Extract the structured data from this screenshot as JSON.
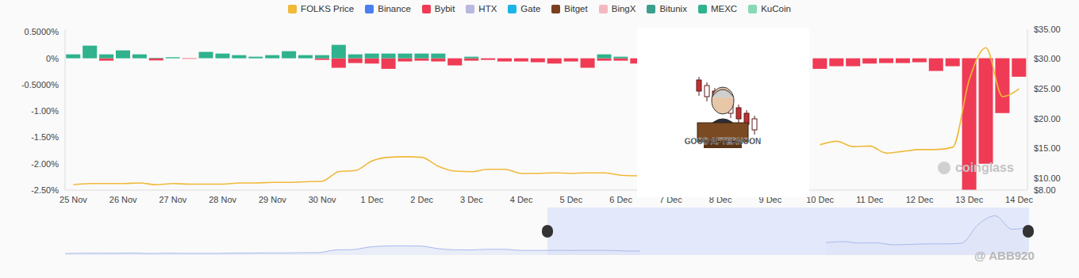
{
  "chart_data": {
    "type": "bar",
    "stacked": true,
    "grid": false,
    "legend": "top",
    "annotations": [
      "GOOD AFTERNOON",
      "coinglass",
      "@ ABB920"
    ],
    "categories": [
      "25 Nov",
      null,
      null,
      "26 Nov",
      null,
      null,
      "27 Nov",
      null,
      null,
      "28 Nov",
      null,
      null,
      "29 Nov",
      null,
      null,
      "30 Nov",
      null,
      null,
      "1 Dec",
      null,
      null,
      "2 Dec",
      null,
      null,
      "3 Dec",
      null,
      null,
      "4 Dec",
      null,
      null,
      "5 Dec",
      null,
      null,
      "6 Dec",
      null,
      null,
      "7 Dec",
      null,
      null,
      "8 Dec",
      null,
      null,
      "9 Dec",
      null,
      null,
      "10 Dec",
      null,
      null,
      "11 Dec",
      null,
      null,
      "12 Dec",
      null,
      null,
      "13 Dec",
      null,
      null,
      "14 Dec"
    ],
    "ylim": [
      -2.5,
      0.55
    ],
    "yticks": [
      {
        "value": 0.5,
        "label": "0.5000%"
      },
      {
        "value": 0,
        "label": "0%"
      },
      {
        "value": -0.5,
        "label": "-0.5000%"
      },
      {
        "value": -1,
        "label": "-1.00%"
      },
      {
        "value": -1.5,
        "label": "-1.50%"
      },
      {
        "value": -2,
        "label": "-2.00%"
      },
      {
        "value": -2.5,
        "label": "-2.50%"
      }
    ],
    "y2lim": [
      8,
      35
    ],
    "y2ticks": [
      {
        "value": 35,
        "label": "$35.00"
      },
      {
        "value": 30,
        "label": "$30.00"
      },
      {
        "value": 25,
        "label": "$25.00"
      },
      {
        "value": 20,
        "label": "$20.00"
      },
      {
        "value": 15,
        "label": "$15.00"
      },
      {
        "value": 10,
        "label": "$10.00"
      },
      {
        "value": 8,
        "label": "$8.00"
      }
    ],
    "series": [
      {
        "name": "FOLKS Price",
        "type": "line",
        "axis": "y2",
        "color": "#f0b93a",
        "values": [
          8.9,
          9.1,
          9.1,
          9.1,
          9.2,
          8.9,
          9.1,
          9.0,
          9.0,
          9.0,
          9.2,
          9.2,
          9.3,
          9.3,
          9.4,
          9.5,
          11.1,
          11.3,
          12.9,
          13.5,
          13.6,
          13.5,
          12.0,
          11.2,
          11.1,
          11.5,
          11.5,
          10.8,
          10.8,
          10.9,
          10.8,
          10.9,
          10.9,
          10.5,
          10.4,
          null,
          null,
          null,
          null,
          null,
          null,
          null,
          null,
          null,
          null,
          15.6,
          16.2,
          15.3,
          15.4,
          14.2,
          14.5,
          14.8,
          14.8,
          15.2,
          26.6,
          31.9,
          23.7,
          25.0
        ]
      },
      {
        "name": "Binance",
        "color": "#4a7ff0",
        "values": [
          null,
          null,
          null,
          null,
          null,
          null,
          null,
          null,
          null,
          null,
          null,
          null,
          null,
          null,
          null,
          null,
          null,
          null,
          null,
          null,
          null,
          null,
          null,
          null,
          null,
          null,
          null,
          null,
          null,
          null,
          null,
          null,
          null,
          null,
          null,
          null,
          null,
          null,
          null,
          null,
          null,
          null,
          null,
          null,
          null,
          null,
          null,
          null,
          null,
          null,
          null,
          null,
          null,
          null,
          null,
          null,
          null,
          null
        ]
      },
      {
        "name": "Bybit",
        "color": "#ef3b55",
        "values": [
          0,
          0,
          -0.045,
          0,
          0,
          -0.04,
          0,
          -0.01,
          0,
          0,
          0,
          0,
          0,
          0,
          0,
          -0.03,
          -0.18,
          -0.09,
          -0.1,
          -0.2,
          -0.06,
          -0.045,
          -0.06,
          -0.135,
          -0.045,
          -0.03,
          -0.06,
          -0.06,
          -0.075,
          -0.1,
          -0.06,
          -0.18,
          -0.045,
          -0.045,
          -0.1,
          null,
          null,
          null,
          null,
          null,
          null,
          null,
          null,
          null,
          null,
          -0.2,
          -0.15,
          -0.15,
          -0.1,
          -0.09,
          -0.09,
          -0.075,
          -0.24,
          -0.15,
          -2.5,
          -2.0,
          -1.04,
          -0.35
        ]
      },
      {
        "name": "HTX",
        "color": "#b8b8e0",
        "values": [
          null,
          null,
          null,
          null,
          null,
          null,
          null,
          null,
          null,
          null,
          null,
          null,
          null,
          null,
          null,
          null,
          null,
          null,
          null,
          null,
          null,
          null,
          null,
          null,
          null,
          null,
          null,
          null,
          null,
          null,
          null,
          null,
          null,
          null,
          null,
          null,
          null,
          null,
          null,
          null,
          null,
          null,
          null,
          null,
          null,
          null,
          null,
          null,
          null,
          null,
          null,
          null,
          null,
          null,
          null,
          null,
          null,
          null
        ]
      },
      {
        "name": "Gate",
        "color": "#1cb4e6",
        "values": [
          null,
          null,
          null,
          null,
          null,
          null,
          null,
          null,
          null,
          null,
          null,
          null,
          null,
          null,
          null,
          null,
          null,
          null,
          null,
          null,
          null,
          null,
          null,
          null,
          null,
          null,
          null,
          null,
          null,
          null,
          null,
          null,
          null,
          null,
          null,
          null,
          null,
          null,
          null,
          null,
          null,
          null,
          null,
          null,
          null,
          null,
          null,
          null,
          null,
          null,
          null,
          null,
          null,
          null,
          null,
          null,
          null,
          null
        ]
      },
      {
        "name": "Bitget",
        "color": "#7b3f1e",
        "values": [
          null,
          null,
          null,
          null,
          null,
          null,
          null,
          null,
          null,
          null,
          null,
          null,
          null,
          null,
          null,
          null,
          null,
          null,
          null,
          null,
          null,
          null,
          null,
          null,
          null,
          null,
          null,
          null,
          null,
          null,
          null,
          null,
          null,
          null,
          null,
          null,
          null,
          null,
          null,
          null,
          null,
          null,
          null,
          null,
          null,
          null,
          null,
          null,
          null,
          null,
          null,
          null,
          null,
          null,
          null,
          null,
          null,
          null
        ]
      },
      {
        "name": "BingX",
        "color": "#f2b8be",
        "values": [
          null,
          null,
          null,
          null,
          null,
          null,
          null,
          null,
          null,
          null,
          null,
          null,
          null,
          null,
          null,
          null,
          null,
          null,
          null,
          null,
          null,
          null,
          null,
          null,
          null,
          null,
          null,
          null,
          null,
          null,
          null,
          null,
          null,
          null,
          null,
          null,
          null,
          null,
          null,
          null,
          null,
          null,
          null,
          null,
          null,
          null,
          null,
          null,
          null,
          null,
          null,
          null,
          null,
          null,
          null,
          null,
          null,
          null
        ]
      },
      {
        "name": "Bitunix",
        "color": "#3c9f8e",
        "values": [
          null,
          null,
          null,
          null,
          null,
          null,
          null,
          null,
          null,
          null,
          null,
          null,
          null,
          null,
          null,
          null,
          null,
          null,
          null,
          null,
          null,
          null,
          null,
          null,
          null,
          null,
          null,
          null,
          null,
          null,
          null,
          null,
          null,
          null,
          null,
          null,
          null,
          null,
          null,
          null,
          null,
          null,
          null,
          null,
          null,
          null,
          null,
          null,
          null,
          null,
          null,
          null,
          null,
          null,
          null,
          null,
          null,
          null
        ]
      },
      {
        "name": "MEXC",
        "color": "#2fb28d",
        "values": [
          0.075,
          0.24,
          0.075,
          0.15,
          0.075,
          0.01,
          0.02,
          0,
          0.12,
          0.09,
          0.06,
          0.03,
          0.06,
          0.135,
          0.06,
          0.06,
          0.255,
          0.075,
          0.09,
          0.09,
          0.09,
          0.09,
          0.09,
          0,
          0.03,
          0,
          0,
          0,
          0,
          0,
          0,
          0,
          0.075,
          0.03,
          0,
          null,
          null,
          null,
          null,
          null,
          null,
          null,
          null,
          null,
          null,
          0,
          0,
          0,
          0,
          0,
          0,
          0,
          0,
          0,
          0,
          0,
          0,
          0
        ]
      },
      {
        "name": "KuCoin",
        "color": "#86d9b4",
        "values": [
          null,
          null,
          null,
          null,
          null,
          null,
          null,
          null,
          null,
          null,
          null,
          null,
          null,
          null,
          null,
          null,
          null,
          null,
          null,
          null,
          null,
          null,
          null,
          null,
          null,
          null,
          null,
          null,
          null,
          null,
          null,
          null,
          null,
          null,
          null,
          null,
          null,
          null,
          null,
          null,
          null,
          null,
          null,
          null,
          null,
          null,
          null,
          null,
          null,
          null,
          null,
          null,
          null,
          null,
          null,
          null,
          null,
          null
        ]
      }
    ]
  }
}
